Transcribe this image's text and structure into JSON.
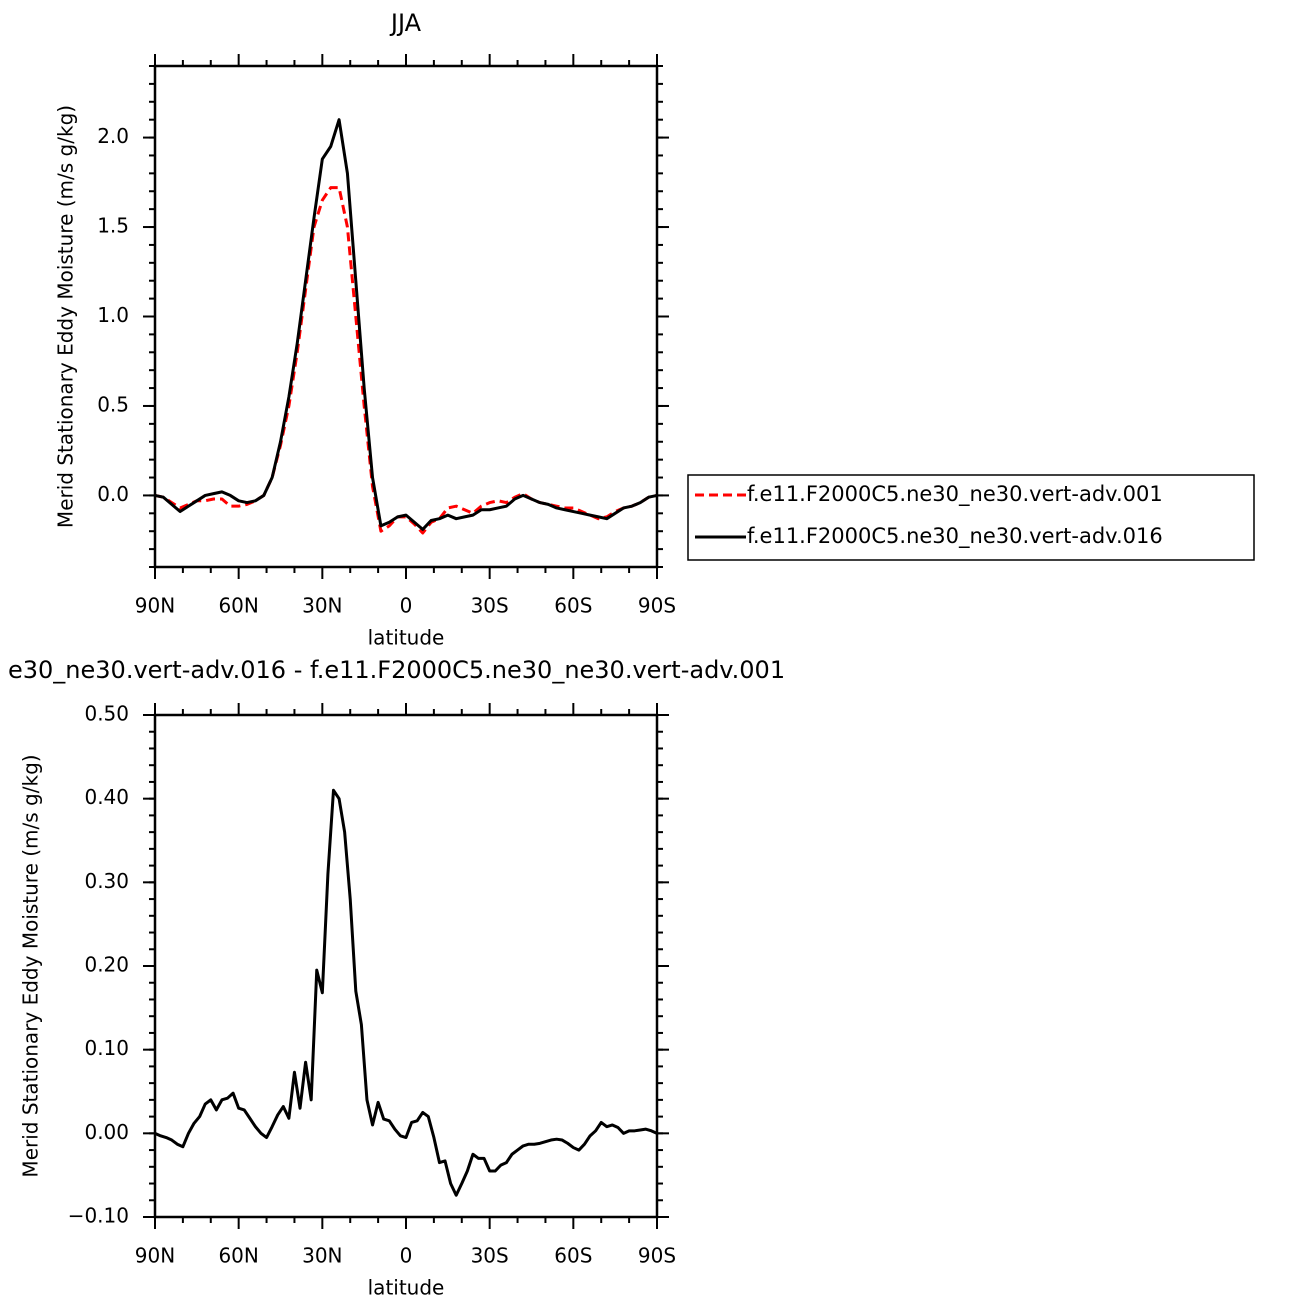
{
  "chart_data": [
    {
      "type": "line",
      "title": "JJA",
      "x_label": "latitude",
      "y_label": "Merid Stationary Eddy Moisture (m/s g/kg)",
      "x": [
        90,
        87,
        84,
        81,
        78,
        75,
        72,
        69,
        66,
        63,
        60,
        57,
        54,
        51,
        48,
        45,
        42,
        39,
        36,
        33,
        30,
        27,
        24,
        21,
        18,
        15,
        12,
        9,
        6,
        3,
        0,
        -3,
        -6,
        -9,
        -12,
        -15,
        -18,
        -21,
        -24,
        -27,
        -30,
        -33,
        -36,
        -39,
        -42,
        -45,
        -48,
        -51,
        -54,
        -57,
        -60,
        -63,
        -66,
        -69,
        -72,
        -75,
        -78,
        -81,
        -84,
        -87,
        -90
      ],
      "series": [
        {
          "name": "f.e11.F2000C5.ne30_ne30.vert-adv.001",
          "color": "#ff0000",
          "style": "dashed",
          "values": [
            0,
            -0.01,
            -0.04,
            -0.07,
            -0.05,
            -0.03,
            -0.03,
            -0.02,
            -0.02,
            -0.06,
            -0.06,
            -0.05,
            -0.03,
            0,
            0.1,
            0.28,
            0.5,
            0.8,
            1.15,
            1.5,
            1.65,
            1.72,
            1.72,
            1.5,
            1.0,
            0.5,
            0.05,
            -0.2,
            -0.17,
            -0.12,
            -0.12,
            -0.16,
            -0.21,
            -0.15,
            -0.13,
            -0.07,
            -0.06,
            -0.08,
            -0.1,
            -0.06,
            -0.04,
            -0.03,
            -0.04,
            -0.01,
            0.01,
            -0.02,
            -0.04,
            -0.05,
            -0.06,
            -0.07,
            -0.07,
            -0.09,
            -0.11,
            -0.13,
            -0.12,
            -0.09,
            -0.07,
            -0.06,
            -0.04,
            -0.01,
            0
          ]
        },
        {
          "name": "f.e11.F2000C5.ne30_ne30.vert-adv.016",
          "color": "#000000",
          "style": "solid",
          "values": [
            0,
            -0.01,
            -0.05,
            -0.09,
            -0.06,
            -0.03,
            0,
            0.01,
            0.02,
            0,
            -0.03,
            -0.04,
            -0.03,
            0,
            0.1,
            0.3,
            0.55,
            0.85,
            1.2,
            1.55,
            1.88,
            1.95,
            2.1,
            1.8,
            1.2,
            0.6,
            0.1,
            -0.17,
            -0.15,
            -0.12,
            -0.11,
            -0.15,
            -0.19,
            -0.14,
            -0.13,
            -0.11,
            -0.13,
            -0.12,
            -0.11,
            -0.08,
            -0.08,
            -0.07,
            -0.06,
            -0.02,
            0,
            -0.02,
            -0.04,
            -0.05,
            -0.07,
            -0.08,
            -0.09,
            -0.1,
            -0.11,
            -0.12,
            -0.13,
            -0.1,
            -0.07,
            -0.06,
            -0.04,
            -0.01,
            0
          ]
        }
      ],
      "xlim": [
        90,
        -90
      ],
      "xticks": [
        {
          "value": 90,
          "label": "90N"
        },
        {
          "value": 60,
          "label": "60N"
        },
        {
          "value": 30,
          "label": "30N"
        },
        0,
        {
          "value": -30,
          "label": "30S"
        },
        {
          "value": -60,
          "label": "60S"
        },
        {
          "value": -90,
          "label": "90S"
        }
      ],
      "ylim": [
        -0.4,
        2.4
      ],
      "yticks": [
        {
          "value": 0,
          "label": "0.0"
        },
        0.5,
        {
          "value": 1,
          "label": "1.0"
        },
        1.5,
        {
          "value": 2,
          "label": "2.0"
        }
      ],
      "legend": "right"
    },
    {
      "type": "line",
      "title": "e30_ne30.vert-adv.016 - f.e11.F2000C5.ne30_ne30.vert-adv.001",
      "x_label": "latitude",
      "y_label": "Merid Stationary Eddy Moisture (m/s g/kg)",
      "x": [
        90,
        88,
        86,
        84,
        82,
        80,
        78,
        76,
        74,
        72,
        70,
        68,
        66,
        64,
        62,
        60,
        58,
        56,
        54,
        52,
        50,
        48,
        46,
        44,
        42,
        40,
        38,
        36,
        34,
        32,
        30,
        28,
        26,
        24,
        22,
        20,
        18,
        16,
        14,
        12,
        10,
        8,
        6,
        4,
        2,
        0,
        -2,
        -4,
        -6,
        -8,
        -10,
        -12,
        -14,
        -16,
        -18,
        -20,
        -22,
        -24,
        -26,
        -28,
        -30,
        -32,
        -34,
        -36,
        -38,
        -40,
        -42,
        -44,
        -46,
        -48,
        -50,
        -52,
        -54,
        -56,
        -58,
        -60,
        -62,
        -64,
        -66,
        -68,
        -70,
        -72,
        -74,
        -76,
        -78,
        -80,
        -82,
        -84,
        -86,
        -88,
        -90
      ],
      "series": [
        {
          "color": "#000000",
          "style": "solid",
          "values": [
            0,
            -0.003,
            -0.005,
            -0.008,
            -0.013,
            -0.016,
            0,
            0.012,
            0.02,
            0.035,
            0.04,
            0.028,
            0.04,
            0.042,
            0.048,
            0.03,
            0.028,
            0.018,
            0.008,
            0,
            -0.005,
            0.008,
            0.022,
            0.032,
            0.018,
            0.073,
            0.03,
            0.085,
            0.04,
            0.195,
            0.168,
            0.31,
            0.41,
            0.4,
            0.36,
            0.28,
            0.17,
            0.13,
            0.04,
            0.01,
            0.037,
            0.017,
            0.015,
            0.005,
            -0.003,
            -0.005,
            0.013,
            0.015,
            0.025,
            0.02,
            -0.005,
            -0.035,
            -0.033,
            -0.06,
            -0.074,
            -0.06,
            -0.045,
            -0.025,
            -0.03,
            -0.03,
            -0.045,
            -0.045,
            -0.038,
            -0.035,
            -0.025,
            -0.02,
            -0.015,
            -0.013,
            -0.013,
            -0.012,
            -0.01,
            -0.008,
            -0.007,
            -0.008,
            -0.012,
            -0.017,
            -0.02,
            -0.013,
            -0.003,
            0.003,
            0.013,
            0.008,
            0.01,
            0.007,
            0,
            0.003,
            0.003,
            0.004,
            0.005,
            0.003,
            0
          ]
        }
      ],
      "xlim": [
        90,
        -90
      ],
      "xticks": [
        {
          "value": 90,
          "label": "90N"
        },
        {
          "value": 60,
          "label": "60N"
        },
        {
          "value": 30,
          "label": "30N"
        },
        0,
        {
          "value": -30,
          "label": "30S"
        },
        {
          "value": -60,
          "label": "60S"
        },
        {
          "value": -90,
          "label": "90S"
        }
      ],
      "ylim": [
        -0.1,
        0.5
      ],
      "yticks": [
        {
          "value": -0.1,
          "label": "−0.10"
        },
        {
          "value": 0,
          "label": "0.00"
        },
        {
          "value": 0.1,
          "label": "0.10"
        },
        {
          "value": 0.2,
          "label": "0.20"
        },
        {
          "value": 0.3,
          "label": "0.30"
        },
        {
          "value": 0.4,
          "label": "0.40"
        },
        {
          "value": 0.5,
          "label": "0.50"
        }
      ]
    }
  ]
}
